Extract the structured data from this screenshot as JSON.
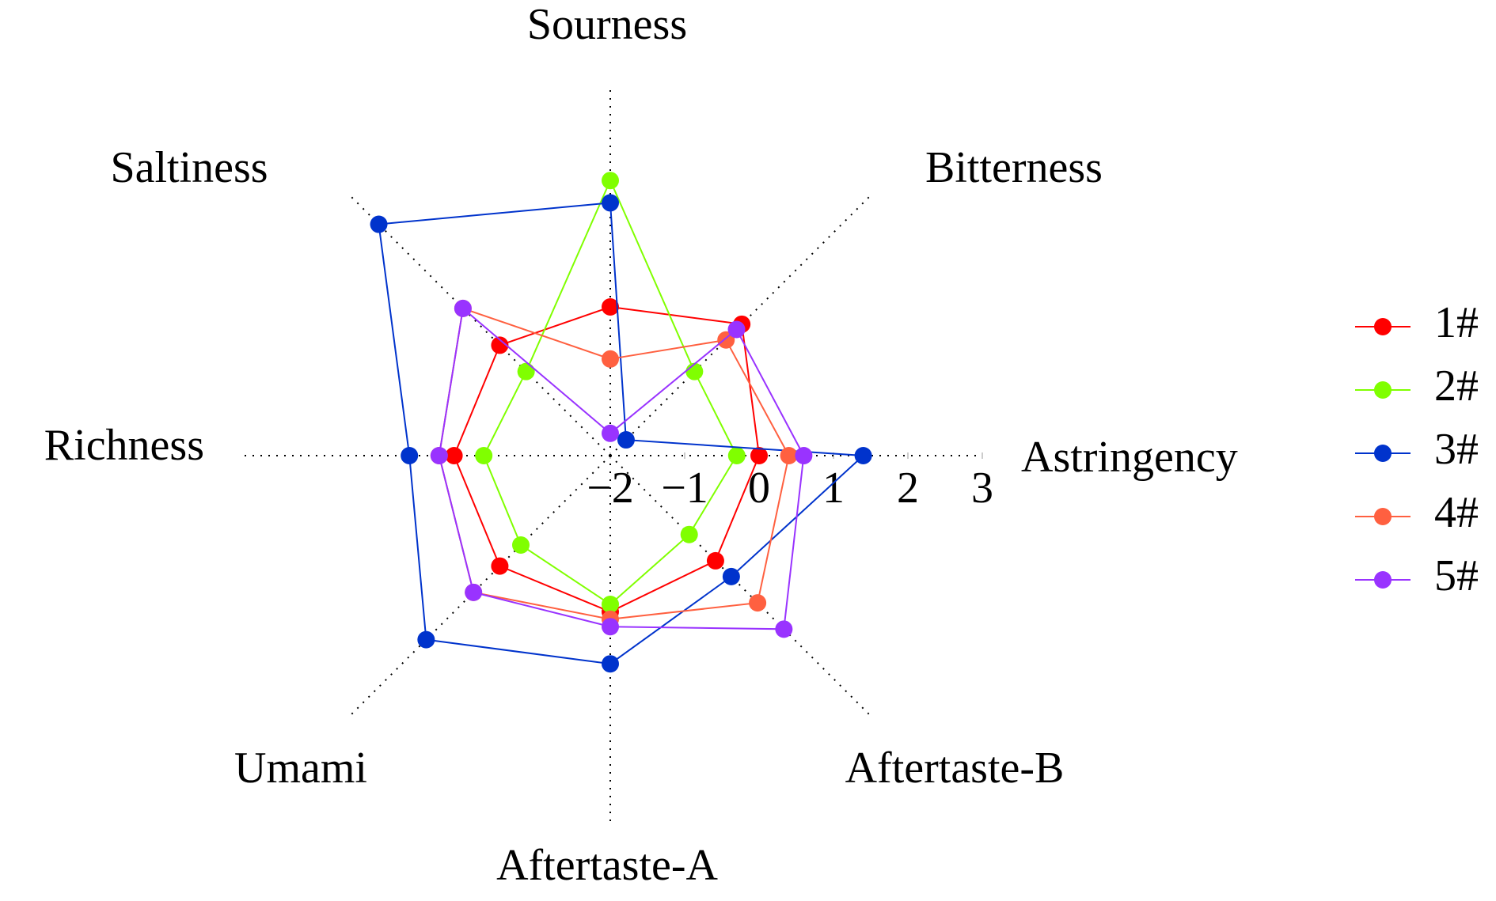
{
  "chart_data": {
    "type": "radar",
    "categories": [
      "Sourness",
      "Bitterness",
      "Astringency",
      "Aftertaste-B",
      "Aftertaste-A",
      "Umami",
      "Richness",
      "Saltiness"
    ],
    "series": [
      {
        "name": "1#",
        "color": "#ff0000",
        "values": [
          0.0,
          0.5,
          0.0,
          0.0,
          0.1,
          0.1,
          0.1,
          0.1
        ]
      },
      {
        "name": "2#",
        "color": "#80ff00",
        "values": [
          1.7,
          -0.4,
          -0.3,
          -0.5,
          0.0,
          -0.3,
          -0.3,
          -0.4
        ]
      },
      {
        "name": "3#",
        "color": "#0033cc",
        "values": [
          1.4,
          -1.7,
          1.4,
          0.3,
          0.8,
          1.5,
          0.7,
          2.4
        ]
      },
      {
        "name": "4#",
        "color": "#ff6040",
        "values": [
          -0.7,
          0.2,
          0.4,
          0.8,
          0.2,
          0.6,
          0.3,
          0.8
        ]
      },
      {
        "name": "5#",
        "color": "#9933ff",
        "values": [
          -1.7,
          0.4,
          0.6,
          1.3,
          0.3,
          0.6,
          0.3,
          0.8
        ]
      }
    ],
    "rlim": [
      -2,
      3
    ],
    "rticks": [
      {
        "value": -2,
        "label": "−2"
      },
      {
        "value": -1,
        "label": "−1"
      },
      0,
      1,
      2,
      3
    ],
    "grid": true,
    "legend": "right"
  }
}
